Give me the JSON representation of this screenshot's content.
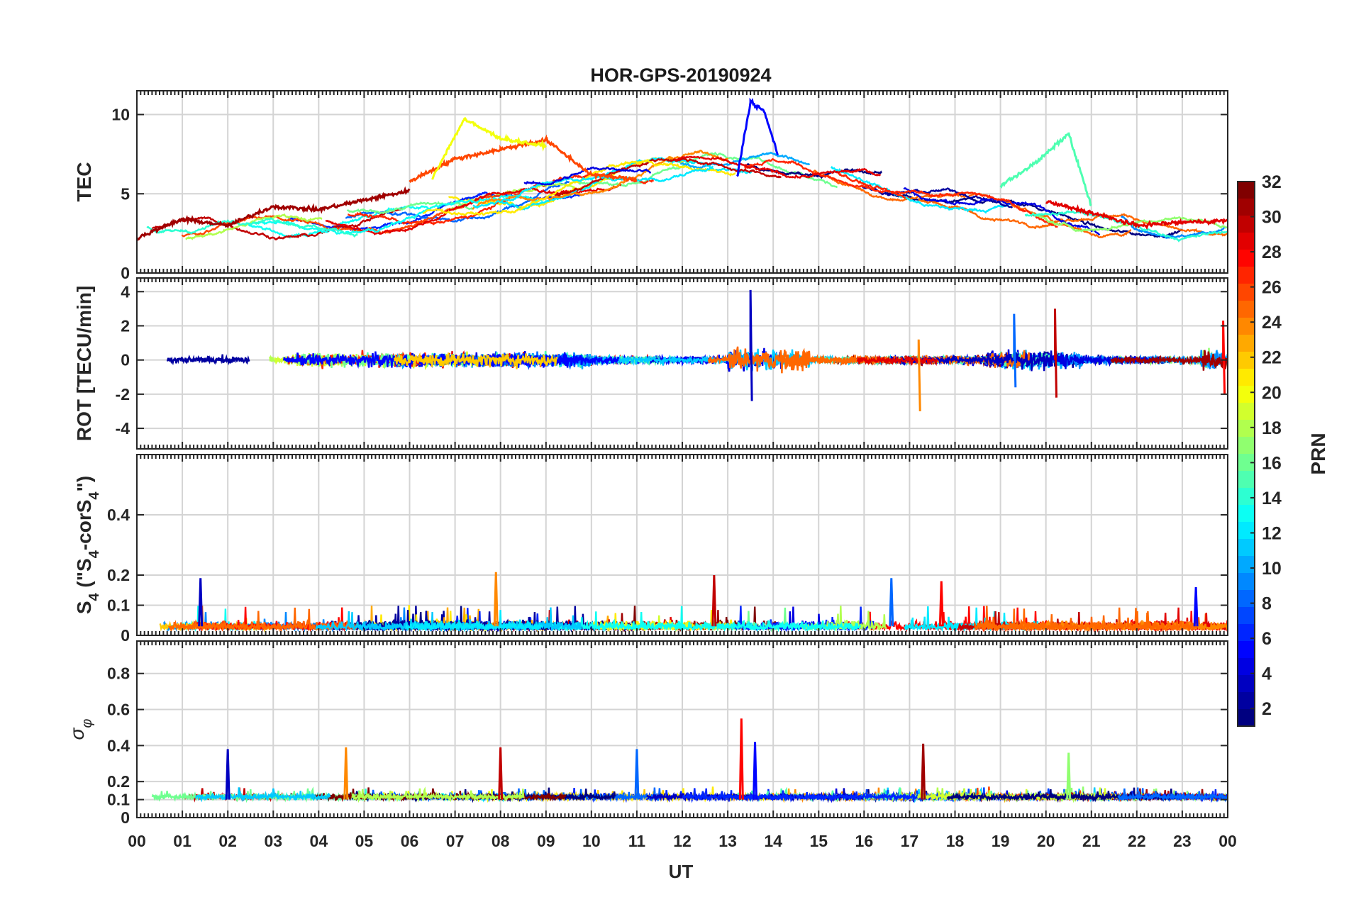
{
  "chart_data": {
    "type": "line",
    "title": "HOR-GPS-20190924",
    "xlabel": "UT",
    "xlim": [
      0,
      24
    ],
    "x_tick_labels": [
      "00",
      "01",
      "02",
      "03",
      "04",
      "05",
      "06",
      "07",
      "08",
      "09",
      "10",
      "11",
      "12",
      "13",
      "14",
      "15",
      "16",
      "17",
      "18",
      "19",
      "20",
      "21",
      "22",
      "23",
      "00"
    ],
    "panels": [
      {
        "id": "tec",
        "ylabel": "TEC",
        "ylim": [
          0,
          11.5
        ],
        "y_ticks": [
          0,
          5,
          10
        ],
        "y_tick_labels": [
          "0",
          "5",
          "10"
        ],
        "series_summary": [
          {
            "name": "PRN 31",
            "x": [
              0,
              1,
              2,
              3,
              4,
              5,
              6
            ],
            "y": [
              2.2,
              3.4,
              3.0,
              4.2,
              4.0,
              4.6,
              5.2
            ]
          },
          {
            "name": "PRN 26",
            "x": [
              6,
              7,
              8,
              9,
              10,
              11
            ],
            "y": [
              5.8,
              7.2,
              7.8,
              8.4,
              6.2,
              5.9
            ]
          },
          {
            "name": "PRN 20",
            "x": [
              6.5,
              7.2,
              8.0,
              9.0
            ],
            "y": [
              6.0,
              9.7,
              8.5,
              8.0
            ]
          },
          {
            "name": "PRN 5",
            "x": [
              13.2,
              13.5,
              13.8,
              14.1
            ],
            "y": [
              6.0,
              10.8,
              10.2,
              7.5
            ]
          },
          {
            "name": "PRN 15",
            "x": [
              19.0,
              19.8,
              20.5,
              21.0
            ],
            "y": [
              5.5,
              7.0,
              8.8,
              4.2
            ]
          },
          {
            "name": "PRN 29",
            "x": [
              20,
              21,
              22,
              23,
              24
            ],
            "y": [
              4.5,
              3.8,
              3.0,
              3.2,
              3.3
            ]
          }
        ]
      },
      {
        "id": "rot",
        "ylabel": "ROT [TECU/min]",
        "ylim": [
          -5.2,
          4.8
        ],
        "y_ticks": [
          -4,
          -2,
          0,
          2,
          4
        ],
        "y_tick_labels": [
          "-4",
          "-2",
          "0",
          "2",
          "4"
        ],
        "peaks": [
          {
            "ut": 13.5,
            "max": 4.1,
            "min": -2.4
          },
          {
            "ut": 17.2,
            "max": 1.2,
            "min": -3.0
          },
          {
            "ut": 20.2,
            "max": 3.0,
            "min": -2.2
          },
          {
            "ut": 19.3,
            "max": 2.7,
            "min": -1.6
          },
          {
            "ut": 23.9,
            "max": 2.3,
            "min": -2.0
          }
        ]
      },
      {
        "id": "s4",
        "ylabel": "S4 (\"S4-corS4\")",
        "ylabel_parts": {
          "main": "S",
          "sub1": "4",
          "mid": " (\"S",
          "sub2": "4",
          "mid2": "-corS",
          "sub3": "4",
          "end": "\")"
        },
        "ylim": [
          0,
          0.6
        ],
        "y_ticks": [
          0,
          0.1,
          0.2,
          0.4
        ],
        "y_tick_labels": [
          "0",
          "0.1",
          "0.2",
          "0.4"
        ],
        "peaks": [
          {
            "ut": 1.4,
            "value": 0.19
          },
          {
            "ut": 7.9,
            "value": 0.21
          },
          {
            "ut": 12.7,
            "value": 0.2
          },
          {
            "ut": 16.6,
            "value": 0.19
          },
          {
            "ut": 17.7,
            "value": 0.18
          },
          {
            "ut": 23.3,
            "value": 0.16
          }
        ]
      },
      {
        "id": "sigphi",
        "ylabel": "σφ",
        "ylabel_parts": {
          "main": "σ",
          "sub": "φ"
        },
        "ylim": [
          0,
          0.98
        ],
        "y_ticks": [
          0,
          0.1,
          0.2,
          0.4,
          0.6,
          0.8
        ],
        "y_tick_labels": [
          "0",
          "0.1",
          "0.2",
          "0.4",
          "0.6",
          "0.8"
        ],
        "peaks": [
          {
            "ut": 2.0,
            "value": 0.38
          },
          {
            "ut": 4.6,
            "value": 0.39
          },
          {
            "ut": 8.0,
            "value": 0.39
          },
          {
            "ut": 11.0,
            "value": 0.38
          },
          {
            "ut": 13.3,
            "value": 0.55
          },
          {
            "ut": 13.6,
            "value": 0.42
          },
          {
            "ut": 17.3,
            "value": 0.41
          },
          {
            "ut": 20.5,
            "value": 0.36
          }
        ]
      }
    ],
    "colorbar": {
      "label": "PRN",
      "range": [
        1,
        32
      ],
      "ticks": [
        2,
        4,
        6,
        8,
        10,
        12,
        14,
        16,
        18,
        20,
        22,
        24,
        26,
        28,
        30,
        32
      ],
      "tick_labels": [
        "2",
        "4",
        "6",
        "8",
        "10",
        "12",
        "14",
        "16",
        "18",
        "20",
        "22",
        "24",
        "26",
        "28",
        "30",
        "32"
      ],
      "colormap": "jet"
    }
  }
}
